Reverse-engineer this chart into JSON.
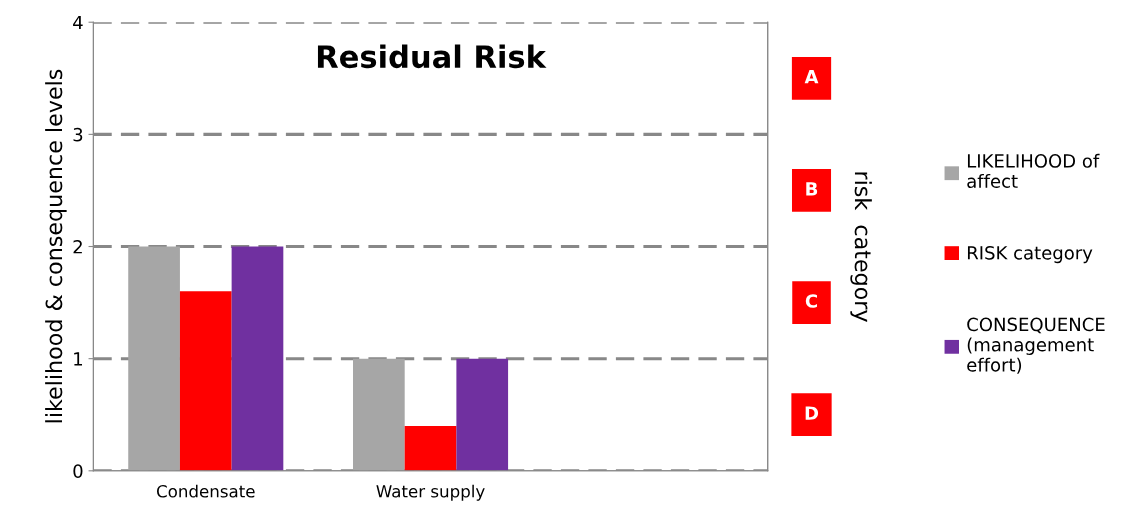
{
  "chart_data": {
    "type": "bar",
    "title": "Residual Risk",
    "ylabel": "likelihood & consequence levels",
    "y2label": "risk  category",
    "categories": [
      "Condensate",
      "Water supply",
      null
    ],
    "series": [
      {
        "name": "LIKELIHOOD of\naffect",
        "color": "#a6a6a6",
        "values": [
          2,
          1,
          null
        ]
      },
      {
        "name": "RISK category",
        "color": "#ff0000",
        "values": [
          1.6,
          0.4,
          null
        ]
      },
      {
        "name": "CONSEQUENCE\n(management\neffort)",
        "color": "#7030a0",
        "values": [
          2,
          1,
          null
        ]
      }
    ],
    "ylim": [
      0,
      4
    ],
    "yticks": [
      0,
      1,
      2,
      3,
      4
    ],
    "annotations": [
      "A",
      "B",
      "C",
      "D"
    ],
    "grid": "y",
    "legend": "right"
  }
}
